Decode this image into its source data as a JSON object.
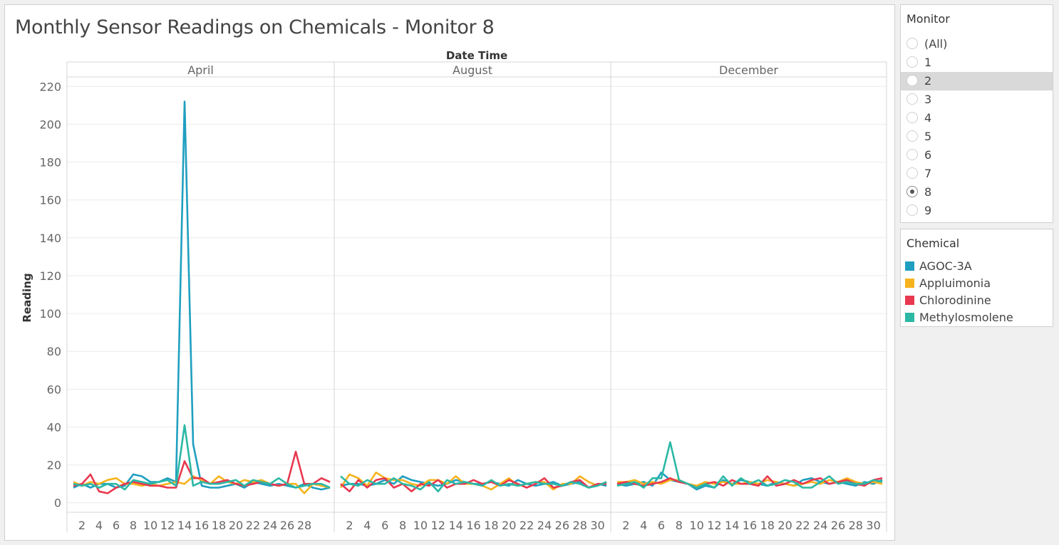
{
  "chart_data": {
    "type": "line",
    "title": "Monthly Sensor Readings on Chemicals - Monitor 8",
    "column_header": "Date Time",
    "ylabel": "Reading",
    "ylim": [
      -5,
      225
    ],
    "y_ticks": [
      0,
      20,
      40,
      60,
      80,
      100,
      120,
      140,
      160,
      180,
      200,
      220
    ],
    "grid": true,
    "legend_placement": "right",
    "panels": [
      {
        "name": "April",
        "days": 31,
        "x_ticks": [
          2,
          4,
          6,
          8,
          10,
          12,
          14,
          16,
          18,
          20,
          22,
          24,
          26,
          28
        ],
        "series": [
          {
            "name": "AGOC-3A",
            "color": "#1f9fc0",
            "values": [
              8,
              10,
              8,
              10,
              10,
              8,
              9,
              15,
              14,
              11,
              11,
              13,
              11,
              212,
              31,
              9,
              8,
              8,
              9,
              10,
              8,
              11,
              10,
              9,
              10,
              9,
              8,
              10,
              8,
              7,
              8
            ]
          },
          {
            "name": "Appluimonia",
            "color": "#f6b31d",
            "values": [
              11,
              9,
              11,
              10,
              12,
              13,
              10,
              10,
              9,
              10,
              9,
              10,
              11,
              10,
              14,
              12,
              10,
              14,
              11,
              10,
              12,
              11,
              12,
              10,
              9,
              10,
              10,
              5,
              10,
              9,
              8
            ]
          },
          {
            "name": "Chlorodinine",
            "color": "#e8384f",
            "values": [
              9,
              10,
              15,
              6,
              5,
              8,
              10,
              11,
              10,
              9,
              9,
              8,
              8,
              22,
              13,
              13,
              10,
              11,
              12,
              10,
              9,
              10,
              11,
              10,
              9,
              10,
              27,
              10,
              10,
              13,
              11
            ]
          },
          {
            "name": "Methylosmolene",
            "color": "#2bb8a4",
            "values": [
              10,
              9,
              10,
              8,
              10,
              10,
              7,
              12,
              11,
              10,
              11,
              12,
              9,
              41,
              9,
              11,
              10,
              10,
              11,
              12,
              9,
              12,
              11,
              10,
              13,
              10,
              8,
              9,
              10,
              10,
              8
            ]
          }
        ]
      },
      {
        "name": "August",
        "days": 31,
        "x_ticks": [
          2,
          4,
          6,
          8,
          10,
          12,
          14,
          16,
          18,
          20,
          22,
          24,
          26,
          28,
          30
        ],
        "series": [
          {
            "name": "AGOC-3A",
            "color": "#1f9fc0",
            "values": [
              9,
              10,
              10,
              9,
              10,
              12,
              10,
              14,
              12,
              11,
              10,
              9,
              10,
              12,
              11,
              10,
              10,
              11,
              10,
              9,
              12,
              10,
              9,
              10,
              11,
              9,
              10,
              11,
              8,
              10,
              9
            ]
          },
          {
            "name": "Appluimonia",
            "color": "#f6b31d",
            "values": [
              8,
              15,
              13,
              9,
              16,
              13,
              12,
              12,
              10,
              9,
              12,
              12,
              10,
              14,
              10,
              10,
              9,
              7,
              10,
              13,
              9,
              10,
              11,
              11,
              7,
              10,
              10,
              14,
              11,
              9,
              11
            ]
          },
          {
            "name": "Chlorodinine",
            "color": "#e8384f",
            "values": [
              10,
              6,
              12,
              8,
              12,
              13,
              8,
              10,
              6,
              10,
              9,
              12,
              8,
              10,
              10,
              12,
              10,
              11,
              9,
              12,
              10,
              8,
              10,
              13,
              8,
              9,
              11,
              12,
              8,
              10,
              10
            ]
          },
          {
            "name": "Methylosmolene",
            "color": "#2bb8a4",
            "values": [
              14,
              10,
              9,
              12,
              10,
              10,
              13,
              10,
              9,
              7,
              11,
              6,
              12,
              10,
              11,
              10,
              9,
              12,
              9,
              10,
              9,
              10,
              11,
              10,
              10,
              9,
              11,
              10,
              8,
              9,
              11
            ]
          }
        ]
      },
      {
        "name": "December",
        "days": 31,
        "x_ticks": [
          2,
          4,
          6,
          8,
          10,
          12,
          14,
          16,
          18,
          20,
          22,
          24,
          26,
          28,
          30
        ],
        "series": [
          {
            "name": "AGOC-3A",
            "color": "#1f9fc0",
            "values": [
              10,
              9,
              10,
              11,
              9,
              16,
              12,
              11,
              10,
              7,
              9,
              8,
              12,
              10,
              12,
              11,
              10,
              9,
              11,
              10,
              9,
              12,
              13,
              11,
              10,
              11,
              10,
              9,
              11,
              10,
              12
            ]
          },
          {
            "name": "Appluimonia",
            "color": "#f6b31d",
            "values": [
              11,
              11,
              12,
              10,
              11,
              10,
              12,
              12,
              10,
              9,
              11,
              10,
              11,
              10,
              10,
              11,
              10,
              12,
              11,
              10,
              9,
              10,
              11,
              10,
              12,
              11,
              13,
              11,
              10,
              11,
              10
            ]
          },
          {
            "name": "Chlorodinine",
            "color": "#e8384f",
            "values": [
              10,
              11,
              10,
              9,
              10,
              11,
              13,
              11,
              10,
              8,
              10,
              11,
              9,
              12,
              10,
              10,
              9,
              14,
              9,
              10,
              12,
              10,
              12,
              13,
              10,
              11,
              12,
              10,
              9,
              12,
              13
            ]
          },
          {
            "name": "Methylosmolene",
            "color": "#2bb8a4",
            "values": [
              9,
              10,
              11,
              8,
              13,
              13,
              32,
              12,
              10,
              8,
              10,
              8,
              14,
              9,
              13,
              10,
              12,
              9,
              10,
              12,
              11,
              8,
              8,
              11,
              14,
              10,
              11,
              10,
              10,
              12,
              11
            ]
          }
        ]
      }
    ]
  },
  "monitor_filter": {
    "title": "Monitor",
    "options": [
      "(All)",
      "1",
      "2",
      "3",
      "4",
      "5",
      "6",
      "7",
      "8",
      "9"
    ],
    "selected": "8",
    "hovered": "2"
  },
  "chemical_legend": {
    "title": "Chemical",
    "items": [
      {
        "label": "AGOC-3A",
        "color": "#1f9fc0"
      },
      {
        "label": "Appluimonia",
        "color": "#f6b31d"
      },
      {
        "label": "Chlorodinine",
        "color": "#e8384f"
      },
      {
        "label": "Methylosmolene",
        "color": "#2bb8a4"
      }
    ]
  }
}
